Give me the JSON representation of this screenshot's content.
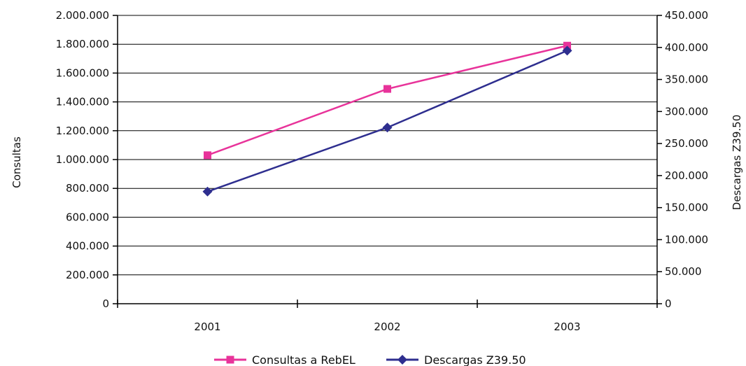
{
  "chart_data": {
    "type": "line",
    "categories": [
      "2001",
      "2002",
      "2003"
    ],
    "series": [
      {
        "name": "Consultas a RebEL",
        "axis": "left",
        "marker": "square",
        "color": "#e8339a",
        "values": [
          1030000,
          1490000,
          1790000
        ]
      },
      {
        "name": "Descargas Z39.50",
        "axis": "right",
        "marker": "diamond",
        "color": "#2e2e8f",
        "values": [
          175000,
          275000,
          395000
        ]
      }
    ],
    "ylabel": "Consultas",
    "y2label": "Descargas Z39.50",
    "ylim": [
      0,
      2000000
    ],
    "y2lim": [
      0,
      450000
    ],
    "yticks": [
      "0",
      "200.000",
      "400.000",
      "600.000",
      "800.000",
      "1.000.000",
      "1.200.000",
      "1.400.000",
      "1.600.000",
      "1.800.000",
      "2.000.000"
    ],
    "y2ticks": [
      "0",
      "50.000",
      "100.000",
      "150.000",
      "200.000",
      "250.000",
      "300.000",
      "350.000",
      "400.000",
      "450.000"
    ],
    "grid": true,
    "legend_position": "bottom"
  }
}
